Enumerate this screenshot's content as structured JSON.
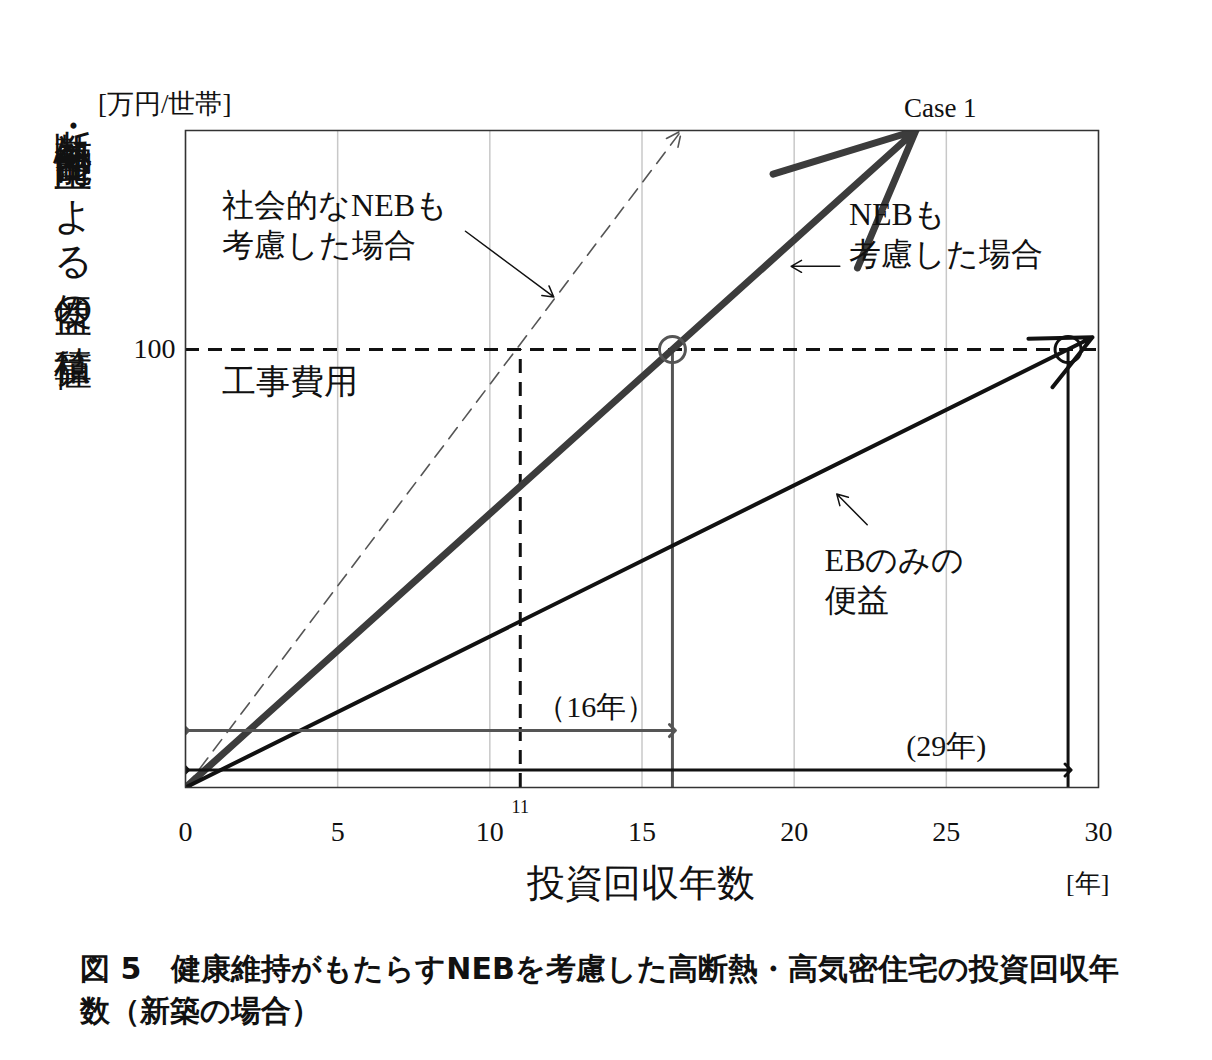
{
  "chart_data": {
    "type": "line",
    "title": "図 5　健康維持がもたらすNEBを考慮した高断熱・高気密住宅の投資回収年数（新築の場合）",
    "x_label": "投資回収年数",
    "x_unit": "[年]",
    "y_label": "断熱・気密性能向上による便益の積算値",
    "y_unit": "[万円/世帯]",
    "xlim": [
      0,
      30
    ],
    "xticks": [
      0,
      5,
      10,
      15,
      20,
      25,
      30
    ],
    "ylim": [
      0,
      150
    ],
    "yticks": [
      100
    ],
    "grid": "x",
    "series": [
      {
        "name": "社会的なNEBも\n考慮した場合",
        "color": "#555555",
        "line_style": "dashed",
        "marker": "arrow",
        "x": [
          0,
          16.3
        ],
        "values": [
          0,
          150
        ],
        "label_pos": [
          1.2,
          137
        ],
        "pointer": [
          [
            9.2,
            127
          ],
          [
            12.1,
            112
          ]
        ]
      },
      {
        "name": "NEBも\n考慮した場合",
        "color": "#3c3c3c",
        "line_style": "solid",
        "marker": "arrow",
        "x": [
          0,
          24
        ],
        "values": [
          0,
          150
        ],
        "label_pos": [
          21.8,
          135
        ],
        "pointer": [
          [
            21.5,
            119
          ],
          [
            19.9,
            119
          ]
        ]
      },
      {
        "name": "EBのみの\n便益",
        "color": "#111111",
        "line_style": "solid",
        "marker": "arrow",
        "x": [
          0,
          29.8
        ],
        "values": [
          0,
          102.8
        ],
        "label_pos": [
          21.0,
          56
        ],
        "pointer": [
          [
            22.4,
            60
          ],
          [
            21.4,
            67
          ]
        ]
      }
    ],
    "hlines": [
      {
        "y": 100,
        "label": "工事費用",
        "line_style": "dashed",
        "color": "#111111",
        "label_pos": [
          1.2,
          92.5
        ]
      }
    ],
    "vlines": [
      {
        "x": 11,
        "y": 100,
        "label": "11",
        "line_style": "dashed",
        "color": "#111111"
      },
      {
        "x": 16,
        "y": 100,
        "line_style": "solid",
        "color": "#555555"
      },
      {
        "x": 29,
        "y": 100,
        "line_style": "solid",
        "color": "#111111"
      }
    ],
    "payback_points": [
      {
        "x": 16,
        "y": 100,
        "color": "#555555"
      },
      {
        "x": 29,
        "y": 100,
        "color": "#111111"
      }
    ],
    "spans": [
      {
        "x1": 0,
        "x2": 16,
        "y": 13,
        "label": "（16年）",
        "label_x": 13.5,
        "color": "#555555"
      },
      {
        "x1": 0,
        "x2": 29,
        "y": 4,
        "label": "(29年)",
        "label_x": 25,
        "color": "#111111"
      }
    ],
    "annotations": [
      {
        "text": "Case 1",
        "x": 24.8,
        "y": 153
      }
    ]
  }
}
